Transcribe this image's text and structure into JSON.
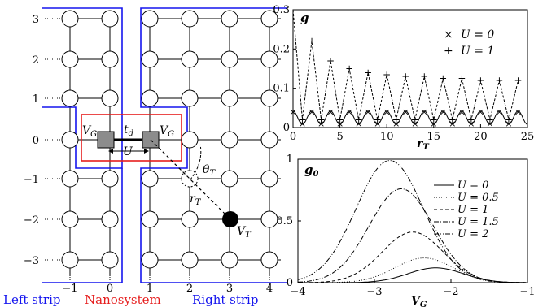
{
  "lattice": {
    "y_ticks": [
      "3",
      "2",
      "1",
      "0",
      "−1",
      "−2",
      "−3"
    ],
    "x_ticks": [
      "−1",
      "0",
      "1",
      "2",
      "3",
      "4"
    ],
    "labels": {
      "vg": "V",
      "vg_sub": "G",
      "td": "t",
      "td_sub": "d",
      "u": "U",
      "theta": "θ",
      "theta_sub": "T",
      "r": "r",
      "r_sub": "T",
      "vt": "V",
      "vt_sub": "T"
    },
    "strips": [
      "Left strip",
      "Nanosystem",
      "Right strip"
    ],
    "colors": {
      "strip": "#1515ee",
      "nanosystem": "#e61e1e",
      "tip": "#000000",
      "site_square": "#8c8c8c"
    }
  },
  "chart_data": [
    {
      "type": "line",
      "panel_label": "g",
      "xlabel": "r",
      "xlabel_sub": "T",
      "xlim": [
        0,
        25
      ],
      "ylim": [
        0,
        0.3
      ],
      "x_ticks": [
        "0",
        "5",
        "10",
        "15",
        "20",
        "25"
      ],
      "y_ticks": [
        "0",
        "0.1",
        "0.2",
        "0.3"
      ],
      "legend_position": "top-right",
      "series": [
        {
          "name": "U = 0",
          "marker": "×",
          "x": [
            0,
            1,
            2,
            3,
            4,
            5,
            6,
            7,
            8,
            9,
            10,
            11,
            12,
            13,
            14,
            15,
            16,
            17,
            18,
            19,
            20,
            21,
            22,
            23,
            24
          ],
          "y": [
            0.04,
            0.01,
            0.04,
            0.01,
            0.04,
            0.01,
            0.04,
            0.01,
            0.04,
            0.01,
            0.04,
            0.01,
            0.04,
            0.01,
            0.04,
            0.01,
            0.04,
            0.01,
            0.04,
            0.01,
            0.04,
            0.01,
            0.04,
            0.01,
            0.04
          ]
        },
        {
          "name": "U = 1",
          "marker": "+",
          "x": [
            1,
            2,
            3,
            4,
            5,
            6,
            7,
            8,
            9,
            10,
            11,
            12,
            13,
            14,
            15,
            16,
            17,
            18,
            19,
            20,
            21,
            22,
            23,
            24
          ],
          "y": [
            0.02,
            0.22,
            0.02,
            0.17,
            0.02,
            0.15,
            0.02,
            0.14,
            0.02,
            0.135,
            0.02,
            0.13,
            0.02,
            0.13,
            0.02,
            0.125,
            0.02,
            0.125,
            0.02,
            0.12,
            0.02,
            0.12,
            0.02,
            0.12
          ]
        }
      ]
    },
    {
      "type": "line",
      "panel_label": "g",
      "panel_label_sub": "0",
      "xlabel": "V",
      "xlabel_sub": "G",
      "xlim": [
        -4,
        -1
      ],
      "ylim": [
        0,
        1
      ],
      "x_ticks": [
        "−4",
        "−3",
        "−2",
        "−1"
      ],
      "y_ticks": [
        "0",
        "0.5",
        "1"
      ],
      "legend_position": "top-right",
      "series": [
        {
          "name": "U = 0",
          "style": "solid",
          "peak_x": -2.2,
          "peak_y": 0.12
        },
        {
          "name": "U = 0.5",
          "style": "dotted",
          "peak_x": -2.35,
          "peak_y": 0.2
        },
        {
          "name": "U = 1",
          "style": "dashed",
          "peak_x": -2.5,
          "peak_y": 0.41
        },
        {
          "name": "U = 1.5",
          "style": "dash-dot",
          "peak_x": -2.65,
          "peak_y": 0.76
        },
        {
          "name": "U = 2",
          "style": "dash-dot-dot",
          "peak_x": -2.8,
          "peak_y": 0.99
        }
      ]
    }
  ]
}
